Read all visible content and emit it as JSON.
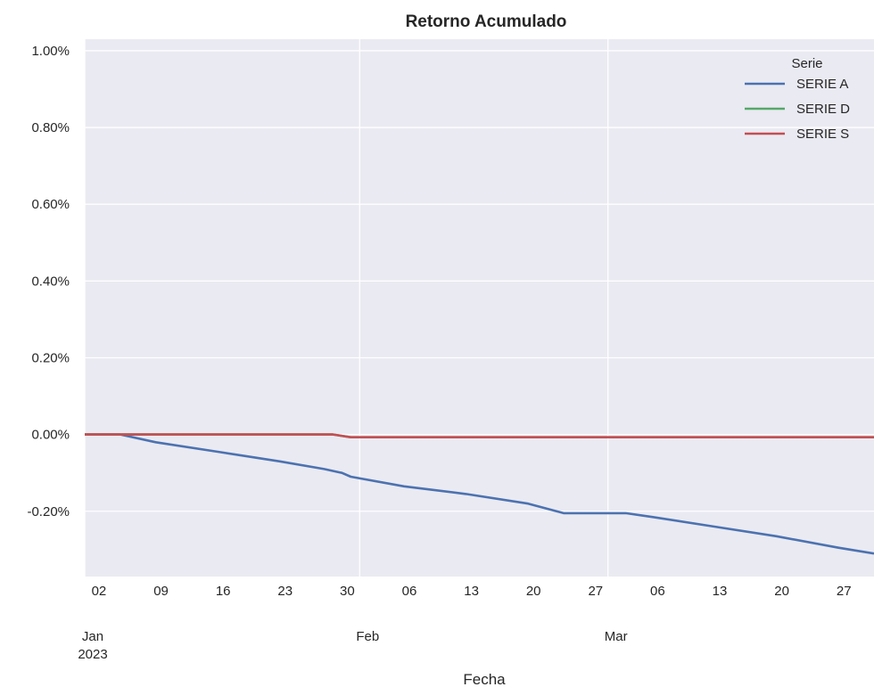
{
  "chart_data": {
    "type": "line",
    "title": "Retorno Acumulado",
    "xlabel": "Fecha",
    "ylabel": "",
    "x_range": [
      "2023-01-01",
      "2023-03-31"
    ],
    "ylim": [
      -0.37,
      1.03
    ],
    "y_ticks": [
      {
        "value": 1.0,
        "label": "1.00%"
      },
      {
        "value": 0.8,
        "label": "0.80%"
      },
      {
        "value": 0.6,
        "label": "0.60%"
      },
      {
        "value": 0.4,
        "label": "0.40%"
      },
      {
        "value": 0.2,
        "label": "0.20%"
      },
      {
        "value": 0.0,
        "label": "0.00%"
      },
      {
        "value": -0.2,
        "label": "-0.20%"
      }
    ],
    "x_minor_ticks": [
      {
        "date": "2023-01-02",
        "label": "02"
      },
      {
        "date": "2023-01-09",
        "label": "09"
      },
      {
        "date": "2023-01-16",
        "label": "16"
      },
      {
        "date": "2023-01-23",
        "label": "23"
      },
      {
        "date": "2023-01-30",
        "label": "30"
      },
      {
        "date": "2023-02-06",
        "label": "06"
      },
      {
        "date": "2023-02-13",
        "label": "13"
      },
      {
        "date": "2023-02-20",
        "label": "20"
      },
      {
        "date": "2023-02-27",
        "label": "27"
      },
      {
        "date": "2023-03-06",
        "label": "06"
      },
      {
        "date": "2023-03-13",
        "label": "13"
      },
      {
        "date": "2023-03-20",
        "label": "20"
      },
      {
        "date": "2023-03-27",
        "label": "27"
      }
    ],
    "x_major_ticks": [
      {
        "date": "2023-01-01",
        "label": "Jan",
        "sublabel": "2023"
      },
      {
        "date": "2023-02-01",
        "label": "Feb",
        "sublabel": ""
      },
      {
        "date": "2023-03-01",
        "label": "Mar",
        "sublabel": ""
      }
    ],
    "grid": true,
    "legend": {
      "title": "Serie",
      "position": "top-right"
    },
    "series": [
      {
        "name": "SERIE A",
        "color": "#4c72b0",
        "points": [
          [
            "2023-01-01",
            0.0
          ],
          [
            "2023-01-05",
            0.0
          ],
          [
            "2023-01-09",
            -0.02
          ],
          [
            "2023-01-16",
            -0.045
          ],
          [
            "2023-01-23",
            -0.07
          ],
          [
            "2023-01-28",
            -0.09
          ],
          [
            "2023-01-30",
            -0.1
          ],
          [
            "2023-01-31",
            -0.11
          ],
          [
            "2023-02-06",
            -0.135
          ],
          [
            "2023-02-13",
            -0.155
          ],
          [
            "2023-02-20",
            -0.18
          ],
          [
            "2023-02-24",
            -0.205
          ],
          [
            "2023-03-03",
            -0.205
          ],
          [
            "2023-03-06",
            -0.215
          ],
          [
            "2023-03-13",
            -0.24
          ],
          [
            "2023-03-20",
            -0.265
          ],
          [
            "2023-03-27",
            -0.295
          ],
          [
            "2023-03-31",
            -0.31
          ]
        ]
      },
      {
        "name": "SERIE D",
        "color": "#55a868",
        "points": [
          [
            "2023-01-01",
            0.0
          ],
          [
            "2023-01-29",
            0.0
          ],
          [
            "2023-01-31",
            -0.007
          ],
          [
            "2023-03-31",
            -0.007
          ]
        ]
      },
      {
        "name": "SERIE S",
        "color": "#c44e52",
        "points": [
          [
            "2023-01-01",
            0.0
          ],
          [
            "2023-01-29",
            0.0
          ],
          [
            "2023-01-31",
            -0.007
          ],
          [
            "2023-03-31",
            -0.007
          ]
        ]
      }
    ]
  }
}
